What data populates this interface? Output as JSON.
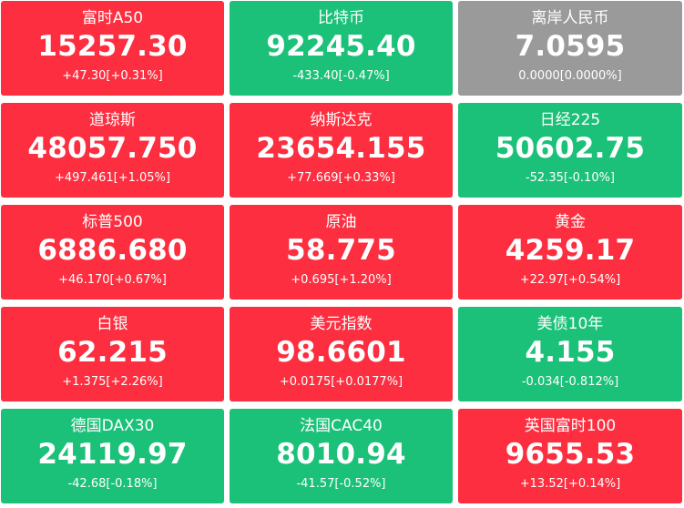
{
  "colors": {
    "up": "#fc2e3f",
    "down": "#1cc179",
    "flat": "#9a9a9a",
    "text": "#ffffff"
  },
  "tiles": [
    {
      "name": "富时A50",
      "price": "15257.30",
      "change": "+47.30[+0.31%]",
      "trend": "up"
    },
    {
      "name": "比特币",
      "price": "92245.40",
      "change": "-433.40[-0.47%]",
      "trend": "down"
    },
    {
      "name": "离岸人民币",
      "price": "7.0595",
      "change": "0.0000[0.0000%]",
      "trend": "flat"
    },
    {
      "name": "道琼斯",
      "price": "48057.750",
      "change": "+497.461[+1.05%]",
      "trend": "up"
    },
    {
      "name": "纳斯达克",
      "price": "23654.155",
      "change": "+77.669[+0.33%]",
      "trend": "up"
    },
    {
      "name": "日经225",
      "price": "50602.75",
      "change": "-52.35[-0.10%]",
      "trend": "down"
    },
    {
      "name": "标普500",
      "price": "6886.680",
      "change": "+46.170[+0.67%]",
      "trend": "up"
    },
    {
      "name": "原油",
      "price": "58.775",
      "change": "+0.695[+1.20%]",
      "trend": "up"
    },
    {
      "name": "黄金",
      "price": "4259.17",
      "change": "+22.97[+0.54%]",
      "trend": "up"
    },
    {
      "name": "白银",
      "price": "62.215",
      "change": "+1.375[+2.26%]",
      "trend": "up"
    },
    {
      "name": "美元指数",
      "price": "98.6601",
      "change": "+0.0175[+0.0177%]",
      "trend": "up"
    },
    {
      "name": "美债10年",
      "price": "4.155",
      "change": "-0.034[-0.812%]",
      "trend": "down"
    },
    {
      "name": "德国DAX30",
      "price": "24119.97",
      "change": "-42.68[-0.18%]",
      "trend": "down"
    },
    {
      "name": "法国CAC40",
      "price": "8010.94",
      "change": "-41.57[-0.52%]",
      "trend": "down"
    },
    {
      "name": "英国富时100",
      "price": "9655.53",
      "change": "+13.52[+0.14%]",
      "trend": "up"
    }
  ]
}
